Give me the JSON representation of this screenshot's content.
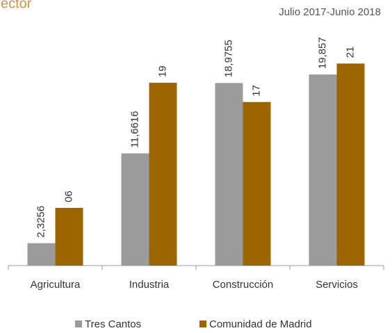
{
  "chart_data": {
    "type": "bar",
    "title": "sector",
    "subtitle": "Julio 2017-Junio 2018",
    "categories": [
      "Agricultura",
      "Industria",
      "Construcción",
      "Servicios"
    ],
    "series": [
      {
        "name": "Tres Cantos",
        "color": "#9b9b9b",
        "values": [
          2.3256,
          11.6616,
          18.9755,
          19.857
        ],
        "value_labels": [
          "2,3256",
          "11,6616",
          "18,9755",
          "19,857"
        ]
      },
      {
        "name": "Comunidad de Madrid",
        "color": "#9c6500",
        "values": [
          6,
          19,
          17,
          21
        ],
        "value_labels": [
          "06",
          "19",
          "17",
          "21"
        ]
      }
    ],
    "ylim": [
      0,
      25
    ]
  }
}
